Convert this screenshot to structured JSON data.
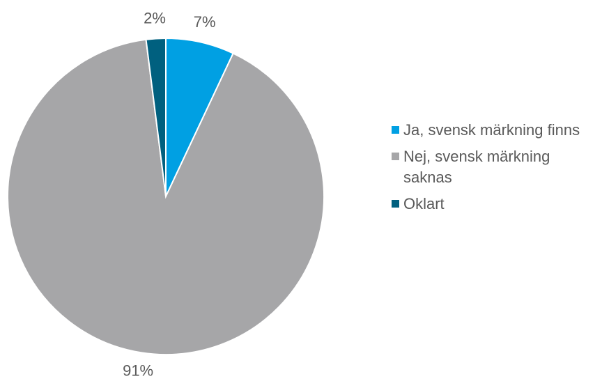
{
  "chart_data": {
    "type": "pie",
    "categories": [
      "Ja, svensk märkning finns",
      "Nej, svensk märkning saknas",
      "Oklart"
    ],
    "values": [
      7,
      91,
      2
    ],
    "value_labels": [
      "7%",
      "91%",
      "2%"
    ],
    "colors": [
      "#00a0e3",
      "#a6a6a8",
      "#00607f"
    ],
    "legend": "right"
  }
}
